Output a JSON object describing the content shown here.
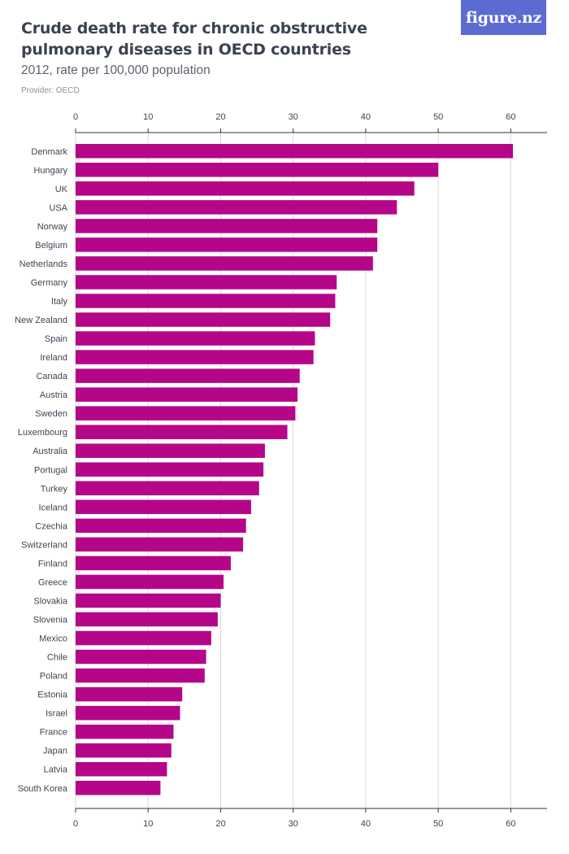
{
  "header": {
    "title": "Crude death rate for chronic obstructive pulmonary diseases in OECD countries",
    "subtitle": "2012, rate per 100,000 population",
    "provider": "Provider: OECD",
    "logo_text": "figure.nz"
  },
  "colors": {
    "bar": "#b5068a",
    "logo_bg": "#5b6bd1",
    "grid": "#d9d9d9",
    "axis": "#333333"
  },
  "chart_data": {
    "type": "bar",
    "orientation": "horizontal",
    "categories": [
      "Denmark",
      "Hungary",
      "UK",
      "USA",
      "Norway",
      "Belgium",
      "Netherlands",
      "Germany",
      "Italy",
      "New Zealand",
      "Spain",
      "Ireland",
      "Canada",
      "Austria",
      "Sweden",
      "Luxembourg",
      "Australia",
      "Portugal",
      "Turkey",
      "Iceland",
      "Czechia",
      "Switzerland",
      "Finland",
      "Greece",
      "Slovakia",
      "Slovenia",
      "Mexico",
      "Chile",
      "Poland",
      "Estonia",
      "Israel",
      "France",
      "Japan",
      "Latvia",
      "South Korea"
    ],
    "values": [
      60.3,
      50.0,
      46.7,
      44.3,
      41.6,
      41.6,
      41.0,
      36.0,
      35.8,
      35.1,
      33.0,
      32.8,
      30.9,
      30.6,
      30.3,
      29.2,
      26.1,
      25.9,
      25.3,
      24.2,
      23.5,
      23.1,
      21.4,
      20.4,
      20.0,
      19.6,
      18.7,
      18.0,
      17.8,
      14.7,
      14.4,
      13.5,
      13.2,
      12.6,
      11.7
    ],
    "xlim": [
      0,
      65
    ],
    "ticks": [
      0,
      10,
      20,
      30,
      40,
      50,
      60
    ],
    "grid": true
  }
}
